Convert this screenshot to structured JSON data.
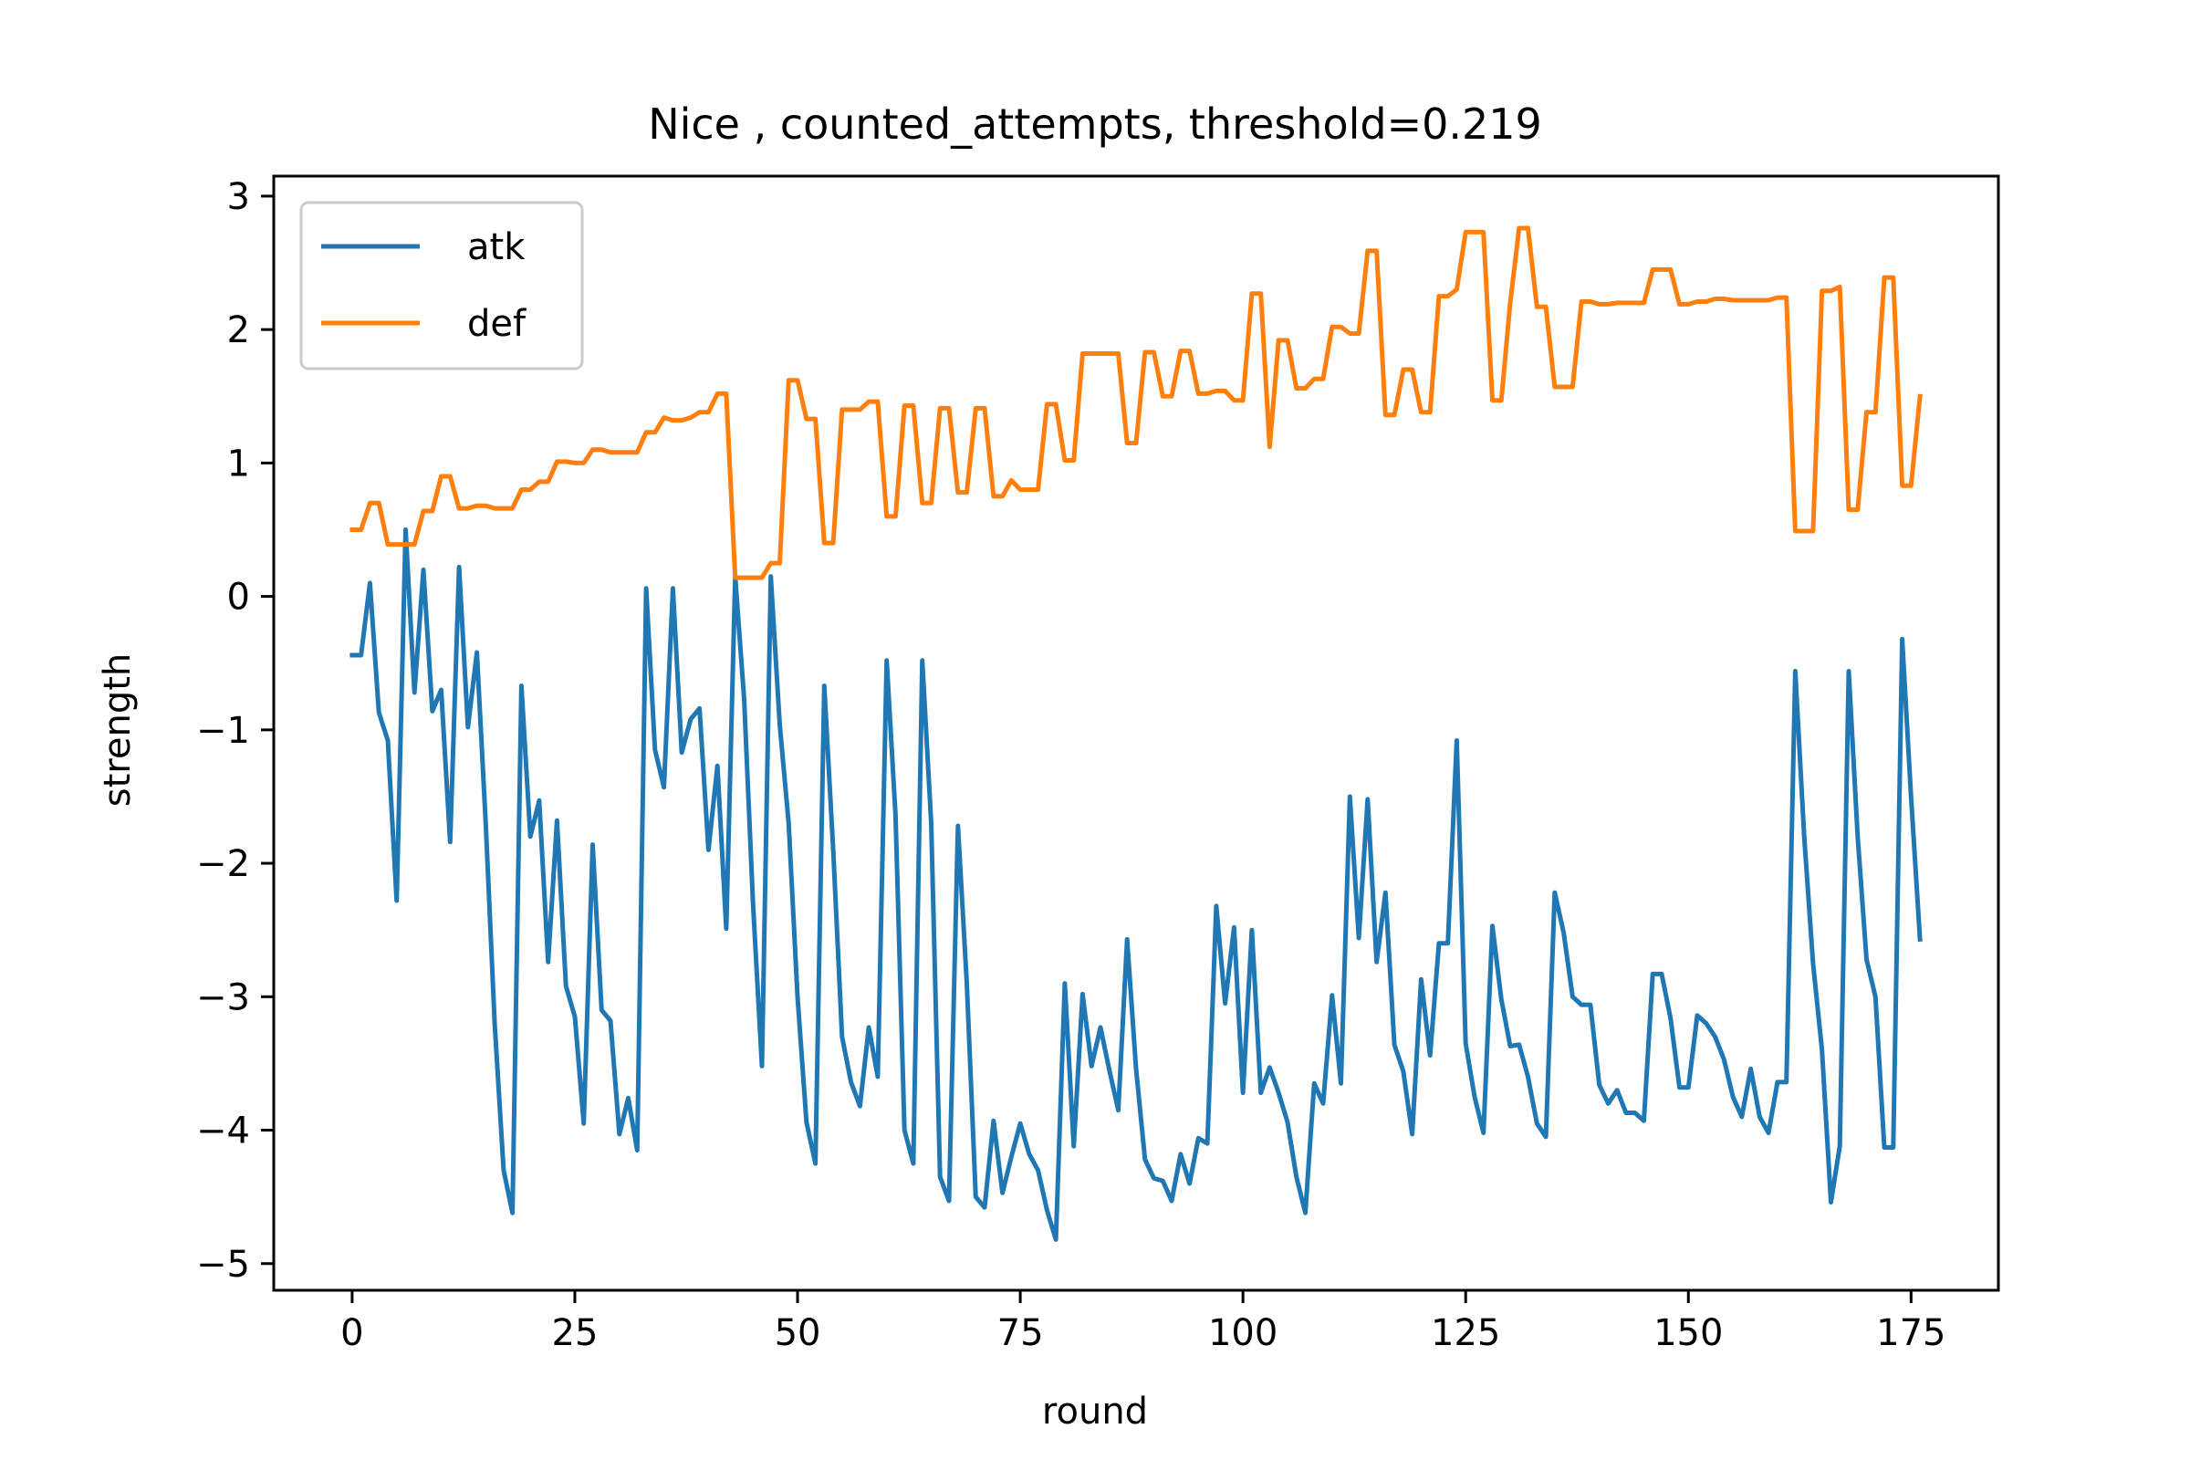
{
  "chart_data": {
    "type": "line",
    "title": "Nice , counted_attempts, threshold=0.219",
    "xlabel": "round",
    "ylabel": "strength",
    "xlim": [
      -8.8,
      184.8
    ],
    "ylim": [
      -5.2,
      3.15
    ],
    "xticks": [
      0,
      25,
      50,
      75,
      100,
      125,
      150,
      175
    ],
    "yticks": [
      3,
      2,
      1,
      0,
      -1,
      -2,
      -3,
      -4,
      -5
    ],
    "ytick_labels": [
      "3",
      "2",
      "1",
      "0",
      "−1",
      "−2",
      "−3",
      "−4",
      "−5"
    ],
    "grid": false,
    "legend_position": "upper left",
    "series": [
      {
        "name": "atk",
        "color": "#1f77b4",
        "x": [
          0,
          1,
          2,
          3,
          4,
          5,
          6,
          7,
          8,
          9,
          10,
          11,
          12,
          13,
          14,
          15,
          16,
          17,
          18,
          19,
          20,
          21,
          22,
          23,
          24,
          25,
          26,
          27,
          28,
          29,
          30,
          31,
          32,
          33,
          34,
          35,
          36,
          37,
          38,
          39,
          40,
          41,
          42,
          43,
          44,
          45,
          46,
          47,
          48,
          49,
          50,
          51,
          52,
          53,
          54,
          55,
          56,
          57,
          58,
          59,
          60,
          61,
          62,
          63,
          64,
          65,
          66,
          67,
          68,
          69,
          70,
          71,
          72,
          73,
          74,
          75,
          76,
          77,
          78,
          79,
          80,
          81,
          82,
          83,
          84,
          85,
          86,
          87,
          88,
          89,
          90,
          91,
          92,
          93,
          94,
          95,
          96,
          97,
          98,
          99,
          100,
          101,
          102,
          103,
          104,
          105,
          106,
          107,
          108,
          109,
          110,
          111,
          112,
          113,
          114,
          115,
          116,
          117,
          118,
          119,
          120,
          121,
          122,
          123,
          124,
          125,
          126,
          127,
          128,
          129,
          130,
          131,
          132,
          133,
          134,
          135,
          136,
          137,
          138,
          139,
          140,
          141,
          142,
          143,
          144,
          145,
          146,
          147,
          148,
          149,
          150,
          151,
          152,
          153,
          154,
          155,
          156,
          157,
          158,
          159,
          160,
          161,
          162,
          163,
          164,
          165,
          166,
          167,
          168,
          169,
          170,
          171,
          172,
          173,
          174,
          175,
          176
        ],
        "y": [
          -0.44,
          -0.44,
          0.1,
          -0.87,
          -1.08,
          -2.28,
          0.5,
          -0.72,
          0.2,
          -0.86,
          -0.7,
          -1.84,
          0.22,
          -0.98,
          -0.42,
          -1.7,
          -3.2,
          -4.3,
          -4.62,
          -0.67,
          -1.8,
          -1.53,
          -2.74,
          -1.68,
          -2.92,
          -3.15,
          -3.95,
          -1.86,
          -3.1,
          -3.18,
          -4.03,
          -3.76,
          -4.15,
          0.06,
          -1.15,
          -1.43,
          0.06,
          -1.17,
          -0.92,
          -0.84,
          -1.9,
          -1.27,
          -2.49,
          0.15,
          -0.77,
          -2.3,
          -3.52,
          0.15,
          -0.96,
          -1.7,
          -3.0,
          -3.94,
          -4.25,
          -0.67,
          -1.9,
          -3.3,
          -3.64,
          -3.82,
          -3.23,
          -3.6,
          -0.48,
          -1.64,
          -4.0,
          -4.25,
          -0.48,
          -1.7,
          -4.35,
          -4.53,
          -1.72,
          -2.9,
          -4.5,
          -4.58,
          -3.93,
          -4.47,
          -4.2,
          -3.95,
          -4.18,
          -4.3,
          -4.6,
          -4.82,
          -2.9,
          -4.12,
          -2.98,
          -3.52,
          -3.23,
          -3.55,
          -3.85,
          -2.57,
          -3.54,
          -4.22,
          -4.36,
          -4.38,
          -4.53,
          -4.18,
          -4.4,
          -4.06,
          -4.1,
          -2.32,
          -3.05,
          -2.48,
          -3.72,
          -2.5,
          -3.72,
          -3.53,
          -3.72,
          -3.94,
          -4.35,
          -4.62,
          -3.65,
          -3.8,
          -2.99,
          -3.65,
          -1.5,
          -2.56,
          -1.52,
          -2.74,
          -2.22,
          -3.36,
          -3.56,
          -4.03,
          -2.87,
          -3.44,
          -2.6,
          -2.6,
          -1.08,
          -3.35,
          -3.75,
          -4.02,
          -2.47,
          -3.02,
          -3.37,
          -3.36,
          -3.6,
          -3.95,
          -4.05,
          -2.22,
          -2.52,
          -3.0,
          -3.06,
          -3.06,
          -3.66,
          -3.8,
          -3.7,
          -3.87,
          -3.87,
          -3.93,
          -2.83,
          -2.83,
          -3.16,
          -3.68,
          -3.68,
          -3.14,
          -3.2,
          -3.3,
          -3.47,
          -3.75,
          -3.9,
          -3.54,
          -3.9,
          -4.02,
          -3.64,
          -3.64,
          -0.56,
          -1.8,
          -2.75,
          -3.4,
          -4.54,
          -4.12,
          -0.56,
          -1.8,
          -2.72,
          -3.0,
          -4.13,
          -4.13,
          -0.32,
          -1.5,
          -2.57
        ]
      },
      {
        "name": "def",
        "color": "#ff7f0e",
        "x": [
          0,
          1,
          2,
          3,
          4,
          5,
          6,
          7,
          8,
          9,
          10,
          11,
          12,
          13,
          14,
          15,
          16,
          17,
          18,
          19,
          20,
          21,
          22,
          23,
          24,
          25,
          26,
          27,
          28,
          29,
          30,
          31,
          32,
          33,
          34,
          35,
          36,
          37,
          38,
          39,
          40,
          41,
          42,
          43,
          44,
          45,
          46,
          47,
          48,
          49,
          50,
          51,
          52,
          53,
          54,
          55,
          56,
          57,
          58,
          59,
          60,
          61,
          62,
          63,
          64,
          65,
          66,
          67,
          68,
          69,
          70,
          71,
          72,
          73,
          74,
          75,
          76,
          77,
          78,
          79,
          80,
          81,
          82,
          83,
          84,
          85,
          86,
          87,
          88,
          89,
          90,
          91,
          92,
          93,
          94,
          95,
          96,
          97,
          98,
          99,
          100,
          101,
          102,
          103,
          104,
          105,
          106,
          107,
          108,
          109,
          110,
          111,
          112,
          113,
          114,
          115,
          116,
          117,
          118,
          119,
          120,
          121,
          122,
          123,
          124,
          125,
          126,
          127,
          128,
          129,
          130,
          131,
          132,
          133,
          134,
          135,
          136,
          137,
          138,
          139,
          140,
          141,
          142,
          143,
          144,
          145,
          146,
          147,
          148,
          149,
          150,
          151,
          152,
          153,
          154,
          155,
          156,
          157,
          158,
          159,
          160,
          161,
          162,
          163,
          164,
          165,
          166,
          167,
          168,
          169,
          170,
          171,
          172,
          173,
          174,
          175,
          176
        ],
        "y": [
          0.5,
          0.5,
          0.7,
          0.7,
          0.39,
          0.39,
          0.39,
          0.39,
          0.64,
          0.64,
          0.9,
          0.9,
          0.66,
          0.66,
          0.68,
          0.68,
          0.66,
          0.66,
          0.66,
          0.8,
          0.8,
          0.86,
          0.86,
          1.01,
          1.01,
          1.0,
          1.0,
          1.1,
          1.1,
          1.08,
          1.08,
          1.08,
          1.08,
          1.23,
          1.23,
          1.34,
          1.32,
          1.32,
          1.34,
          1.38,
          1.38,
          1.52,
          1.52,
          0.14,
          0.14,
          0.14,
          0.14,
          0.25,
          0.25,
          1.62,
          1.62,
          1.33,
          1.33,
          0.4,
          0.4,
          1.4,
          1.4,
          1.4,
          1.46,
          1.46,
          0.6,
          0.6,
          1.43,
          1.43,
          0.7,
          0.7,
          1.41,
          1.41,
          0.78,
          0.78,
          1.41,
          1.41,
          0.75,
          0.75,
          0.87,
          0.8,
          0.8,
          0.8,
          1.44,
          1.44,
          1.02,
          1.02,
          1.82,
          1.82,
          1.82,
          1.82,
          1.82,
          1.15,
          1.15,
          1.83,
          1.83,
          1.5,
          1.5,
          1.84,
          1.84,
          1.52,
          1.52,
          1.54,
          1.54,
          1.47,
          1.47,
          2.27,
          2.27,
          1.12,
          1.92,
          1.92,
          1.56,
          1.56,
          1.63,
          1.63,
          2.02,
          2.02,
          1.97,
          1.97,
          2.59,
          2.59,
          1.36,
          1.36,
          1.7,
          1.7,
          1.38,
          1.38,
          2.25,
          2.25,
          2.3,
          2.73,
          2.73,
          2.73,
          1.47,
          1.47,
          2.2,
          2.76,
          2.76,
          2.17,
          2.17,
          1.57,
          1.57,
          1.57,
          2.21,
          2.21,
          2.19,
          2.19,
          2.2,
          2.2,
          2.2,
          2.2,
          2.45,
          2.45,
          2.45,
          2.19,
          2.19,
          2.21,
          2.21,
          2.23,
          2.23,
          2.22,
          2.22,
          2.22,
          2.22,
          2.22,
          2.24,
          2.24,
          0.49,
          0.49,
          0.49,
          2.29,
          2.29,
          2.32,
          0.65,
          0.65,
          1.38,
          1.38,
          2.39,
          2.39,
          0.83,
          0.83,
          1.5
        ]
      }
    ]
  }
}
